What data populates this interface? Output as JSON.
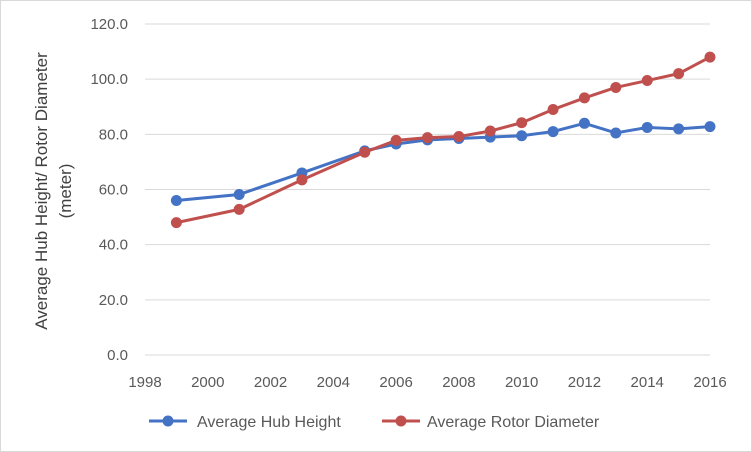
{
  "chart_data": {
    "type": "line",
    "title": "",
    "xlabel": "",
    "ylabel": "Average Hub Height/ Rotor Diameter (meter)",
    "ylabel_lines": [
      "Average Hub Height/ Rotor Diameter",
      "(meter)"
    ],
    "xlim": [
      1998,
      2016
    ],
    "ylim": [
      0,
      120
    ],
    "x_ticks": [
      1998,
      2000,
      2002,
      2004,
      2006,
      2008,
      2010,
      2012,
      2014,
      2016
    ],
    "x_tick_labels": [
      "1998",
      "2000",
      "2002",
      "2004",
      "2006",
      "2008",
      "2010",
      "2012",
      "2014",
      "2016"
    ],
    "y_ticks": [
      0,
      20,
      40,
      60,
      80,
      100,
      120
    ],
    "y_tick_labels": [
      "0.0",
      "20.0",
      "40.0",
      "60.0",
      "80.0",
      "100.0",
      "120.0"
    ],
    "grid": "horizontal",
    "legend_position": "bottom",
    "series": [
      {
        "name": "Average Hub Height",
        "color": "#4472c4",
        "x": [
          1999,
          2001,
          2003,
          2005,
          2006,
          2007,
          2008,
          2009,
          2010,
          2011,
          2012,
          2013,
          2014,
          2015,
          2016
        ],
        "values": [
          56.0,
          58.2,
          66.0,
          74.0,
          76.5,
          78.0,
          78.5,
          79.0,
          79.5,
          81.0,
          84.0,
          80.5,
          82.5,
          82.0,
          82.8
        ]
      },
      {
        "name": "Average Rotor Diameter",
        "color": "#c0504d",
        "x": [
          1999,
          2001,
          2003,
          2005,
          2006,
          2007,
          2008,
          2009,
          2010,
          2011,
          2012,
          2013,
          2014,
          2015,
          2016
        ],
        "values": [
          48.0,
          52.8,
          63.5,
          73.5,
          77.8,
          78.8,
          79.2,
          81.2,
          84.2,
          89.0,
          93.2,
          97.0,
          99.5,
          102.0,
          108.0
        ]
      }
    ]
  }
}
